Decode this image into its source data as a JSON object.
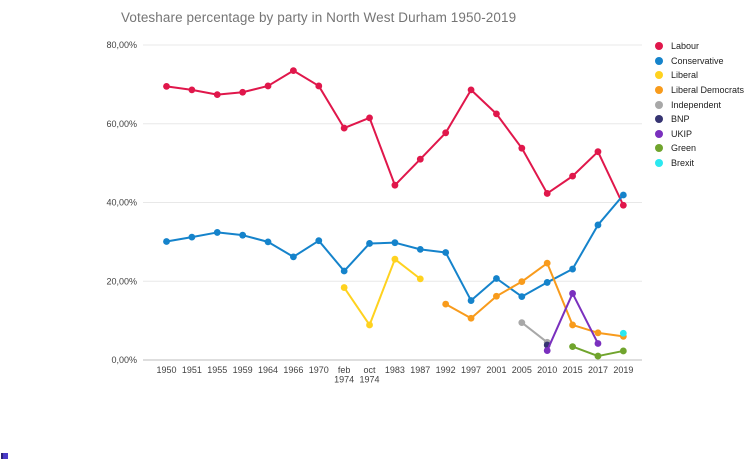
{
  "title": "Voteshare percentage by party in North West Durham 1950-2019",
  "chart_data": {
    "type": "line",
    "title": "Voteshare percentage by party in North West Durham 1950-2019",
    "xlabel": "",
    "ylabel": "",
    "ylim": [
      0,
      80
    ],
    "grid": true,
    "legend_position": "right",
    "y_ticks": [
      "0,00%",
      "20,00%",
      "40,00%",
      "60,00%",
      "80,00%"
    ],
    "y_tick_values": [
      0,
      20,
      40,
      60,
      80
    ],
    "categories": [
      "1950",
      "1951",
      "1955",
      "1959",
      "1964",
      "1966",
      "1970",
      "feb 1974",
      "oct 1974",
      "1983",
      "1987",
      "1992",
      "1997",
      "2001",
      "2005",
      "2010",
      "2015",
      "2017",
      "2019"
    ],
    "series": [
      {
        "name": "Labour",
        "color": "#e0174b",
        "values": [
          69.5,
          68.6,
          67.4,
          68.0,
          69.6,
          73.5,
          69.6,
          58.9,
          61.5,
          44.4,
          51.0,
          57.7,
          68.6,
          62.5,
          53.8,
          42.3,
          46.7,
          52.9,
          39.3
        ]
      },
      {
        "name": "Conservative",
        "color": "#1583cb",
        "values": [
          30.1,
          31.2,
          32.4,
          31.7,
          30.0,
          26.2,
          30.3,
          22.6,
          29.6,
          29.8,
          28.1,
          27.3,
          15.1,
          20.7,
          16.1,
          19.7,
          23.1,
          34.3,
          41.9
        ]
      },
      {
        "name": "Liberal",
        "color": "#ffd21f",
        "values": [
          null,
          null,
          null,
          null,
          null,
          null,
          null,
          18.4,
          8.9,
          25.6,
          20.6,
          null,
          null,
          null,
          null,
          null,
          null,
          null,
          null
        ]
      },
      {
        "name": "Liberal Democrats",
        "color": "#f89b1c",
        "values": [
          null,
          null,
          null,
          null,
          null,
          null,
          null,
          null,
          null,
          null,
          null,
          14.2,
          10.6,
          16.2,
          19.9,
          24.6,
          8.9,
          6.9,
          6.0
        ]
      },
      {
        "name": "Independent",
        "color": "#a8a8a8",
        "values": [
          null,
          null,
          null,
          null,
          null,
          null,
          null,
          null,
          null,
          null,
          null,
          null,
          null,
          null,
          9.5,
          4.5,
          null,
          null,
          null
        ]
      },
      {
        "name": "BNP",
        "color": "#363472",
        "values": [
          null,
          null,
          null,
          null,
          null,
          null,
          null,
          null,
          null,
          null,
          null,
          null,
          null,
          null,
          null,
          3.8,
          null,
          null,
          null
        ]
      },
      {
        "name": "UKIP",
        "color": "#7a30be",
        "values": [
          null,
          null,
          null,
          null,
          null,
          null,
          null,
          null,
          null,
          null,
          null,
          null,
          null,
          null,
          null,
          2.4,
          16.9,
          4.2,
          null
        ]
      },
      {
        "name": "Green",
        "color": "#70a42d",
        "values": [
          null,
          null,
          null,
          null,
          null,
          null,
          null,
          null,
          null,
          null,
          null,
          null,
          null,
          null,
          null,
          null,
          3.4,
          1.0,
          2.3
        ]
      },
      {
        "name": "Brexit",
        "color": "#2be8f0",
        "values": [
          null,
          null,
          null,
          null,
          null,
          null,
          null,
          null,
          null,
          null,
          null,
          null,
          null,
          null,
          null,
          null,
          null,
          null,
          6.8
        ]
      }
    ]
  }
}
